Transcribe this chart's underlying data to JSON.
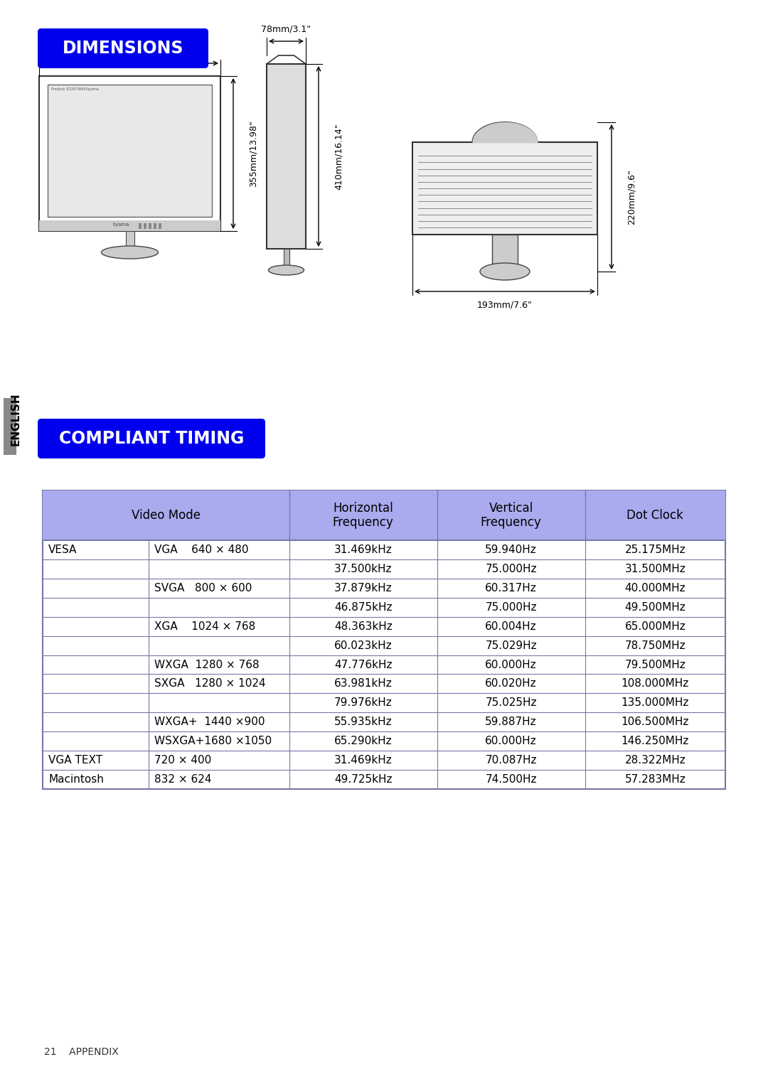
{
  "dimensions_title": "DIMENSIONS",
  "compliant_title": "COMPLIANT TIMING",
  "title_bg_color": "#0000EE",
  "title_text_color": "#FFFFFF",
  "bg_color": "#FFFFFF",
  "header_bg_color": "#AAAAEE",
  "table_border_color": "#7777AA",
  "table_text_color": "#000000",
  "english_label": "ENGLISH",
  "footer_text": "21    APPENDIX",
  "table_header": [
    "Video Mode",
    "Horizontal\nFrequency",
    "Vertical\nFrequency",
    "Dot Clock"
  ],
  "table_rows": [
    [
      "VESA",
      "VGA    640 × 480",
      "31.469kHz",
      "59.940Hz",
      "25.175MHz"
    ],
    [
      "",
      "",
      "37.500kHz",
      "75.000Hz",
      "31.500MHz"
    ],
    [
      "",
      "SVGA   800 × 600",
      "37.879kHz",
      "60.317Hz",
      "40.000MHz"
    ],
    [
      "",
      "",
      "46.875kHz",
      "75.000Hz",
      "49.500MHz"
    ],
    [
      "",
      "XGA    1024 × 768",
      "48.363kHz",
      "60.004Hz",
      "65.000MHz"
    ],
    [
      "",
      "",
      "60.023kHz",
      "75.029Hz",
      "78.750MHz"
    ],
    [
      "",
      "WXGA  1280 × 768",
      "47.776kHz",
      "60.000Hz",
      "79.500MHz"
    ],
    [
      "",
      "SXGA   1280 × 1024",
      "63.981kHz",
      "60.020Hz",
      "108.000MHz"
    ],
    [
      "",
      "",
      "79.976kHz",
      "75.025Hz",
      "135.000MHz"
    ],
    [
      "",
      "WXGA+  1440 ×900",
      "55.935kHz",
      "59.887Hz",
      "106.500MHz"
    ],
    [
      "",
      "WSXGA+1680 ×1050",
      "65.290kHz",
      "60.000Hz",
      "146.250MHz"
    ],
    [
      "VGA TEXT",
      "720 × 400",
      "31.469kHz",
      "70.087Hz",
      "28.322MHz"
    ],
    [
      "Macintosh",
      "832 × 624",
      "49.725kHz",
      "74.500Hz",
      "57.283MHz"
    ]
  ]
}
